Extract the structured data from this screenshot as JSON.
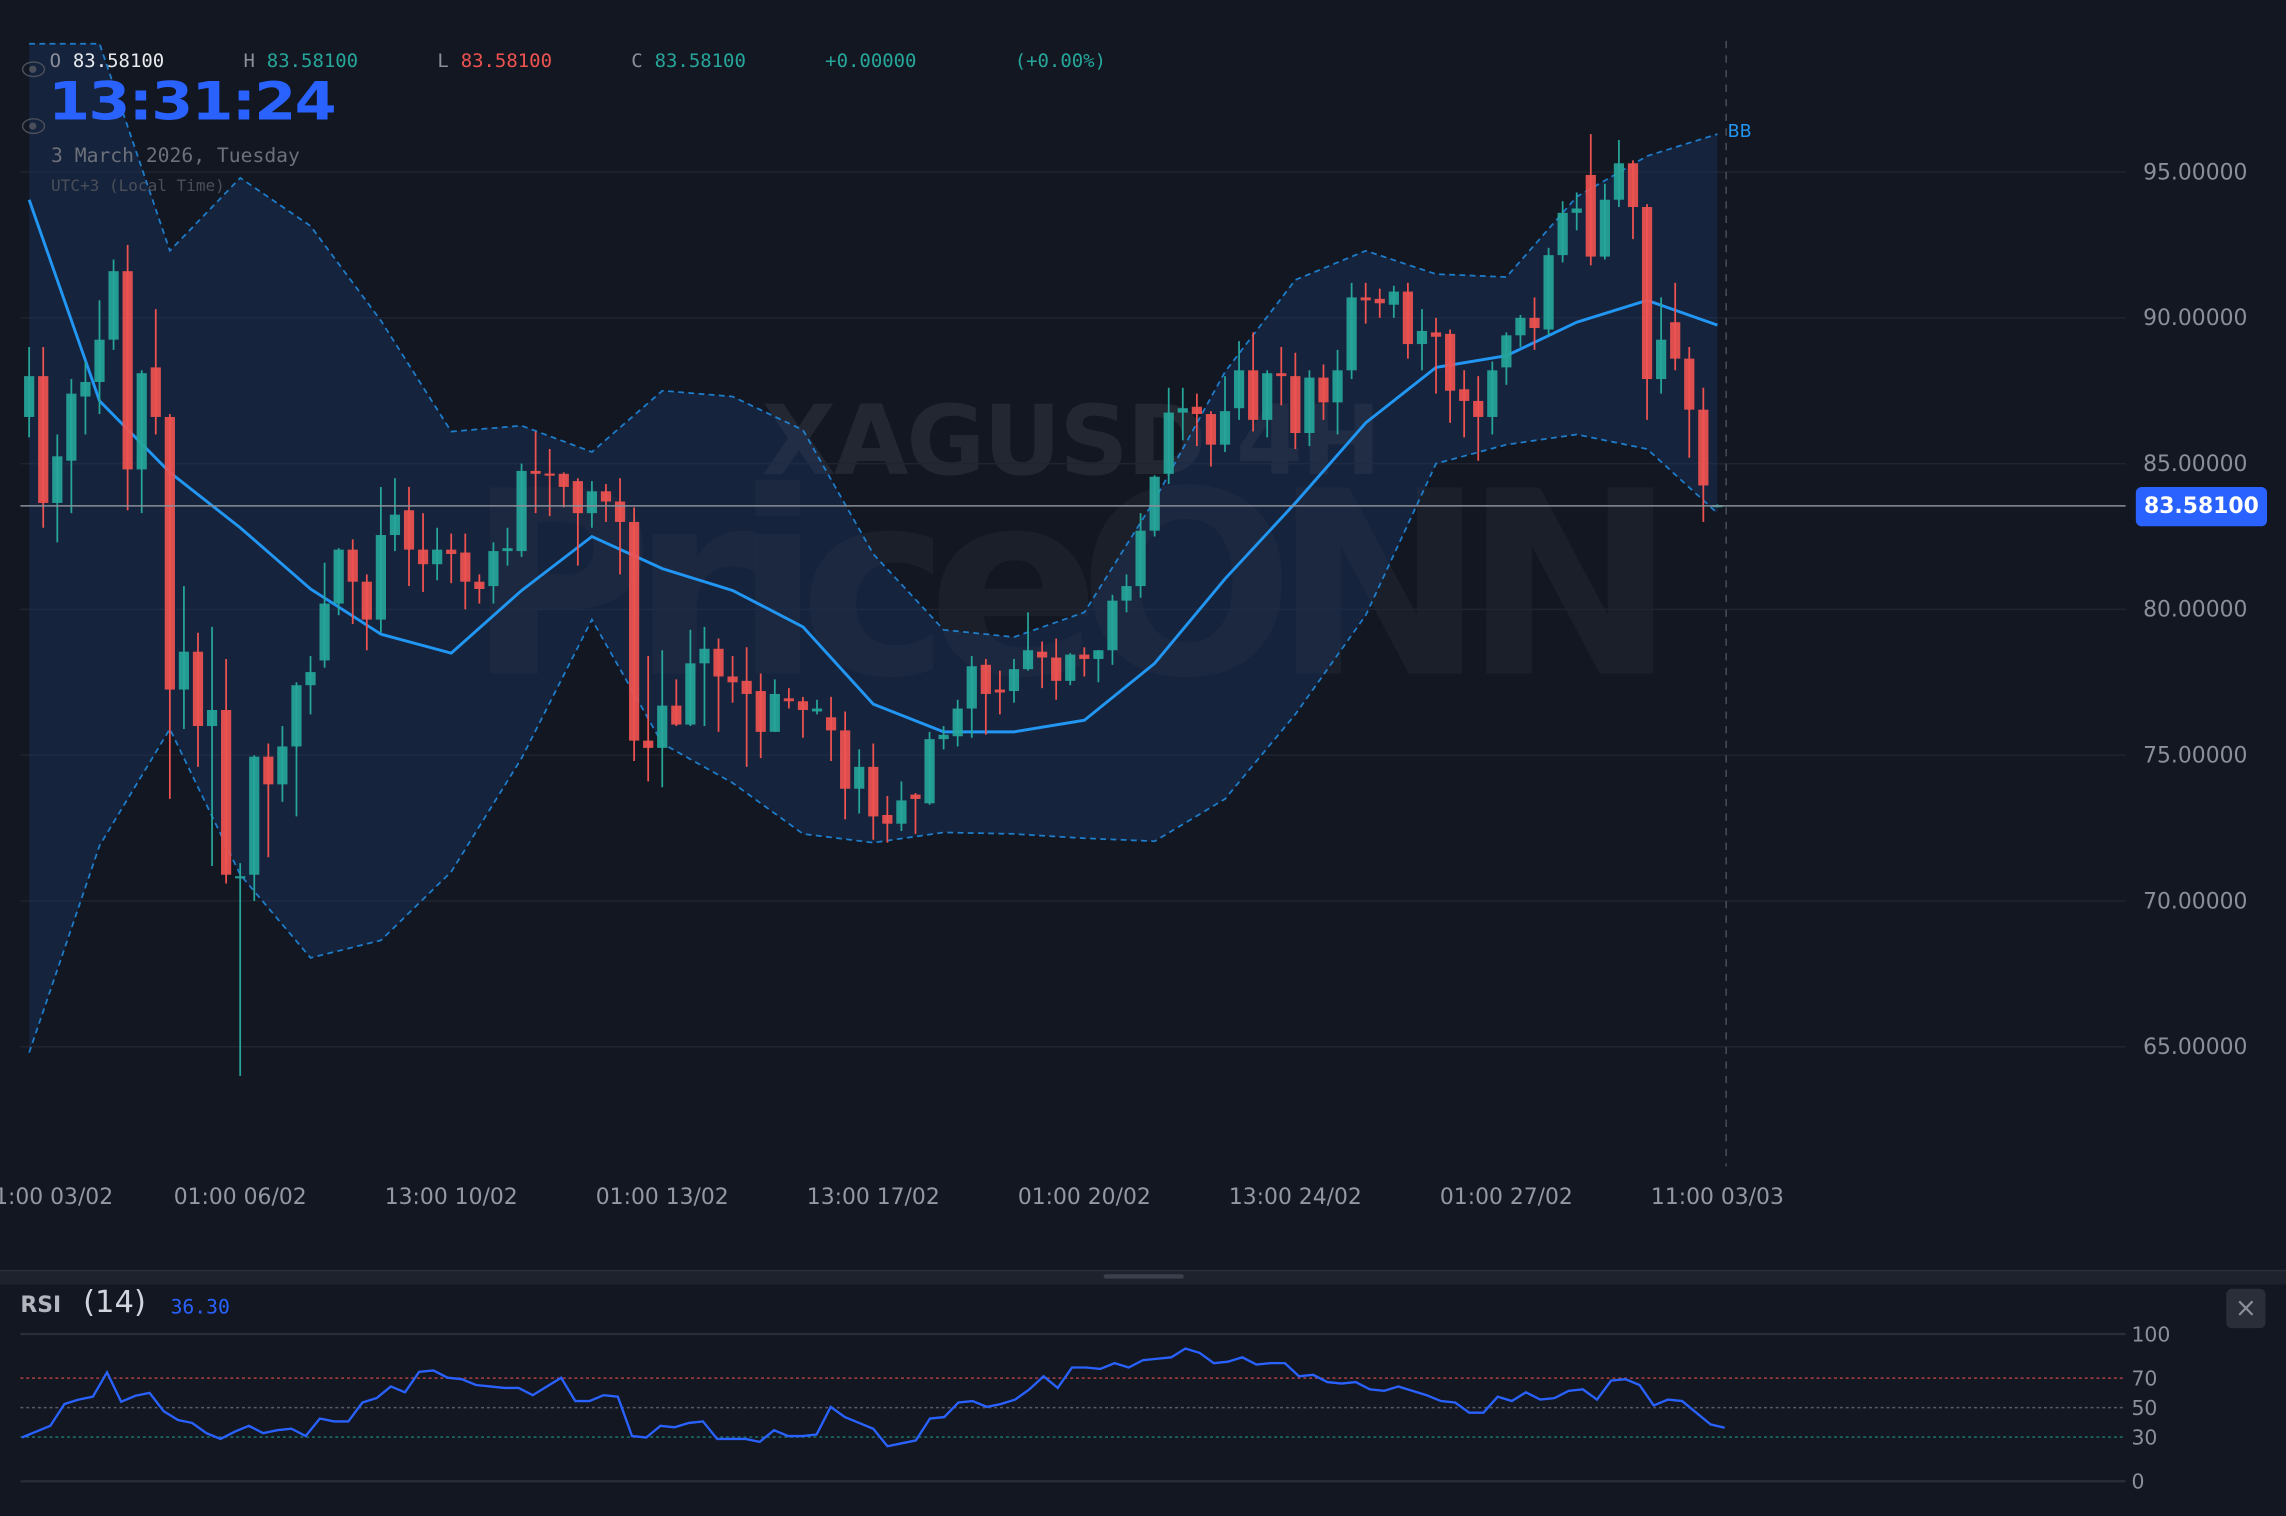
{
  "legend": {
    "open_label": "O",
    "open": "83.58100",
    "high_label": "H",
    "high": "83.58100",
    "low_label": "L",
    "low": "83.58100",
    "close_label": "C",
    "close": "83.58100",
    "change": "+0.00000",
    "change_pct": "(+0.00%)"
  },
  "clock": {
    "time": "13:31:24",
    "date": "3 March 2026, Tuesday",
    "timezone": "UTC+3 (Local Time)"
  },
  "watermark": {
    "symbol": "XAGUSD 4H",
    "brand": "PriceONN"
  },
  "current_price": "83.58100",
  "bb_label": "BB",
  "colors": {
    "background": "#131722",
    "up": "#26a69a",
    "down": "#ef5350",
    "accent": "#2962ff",
    "bb": "#2196f3",
    "rsi": "#2962ff"
  },
  "rsi_panel": {
    "title": "RSI",
    "period_label": "(14)",
    "value": "36.30",
    "close_icon": "close-icon",
    "close_label": "×"
  },
  "chart_data": {
    "type": "candlestick",
    "y_ticks": [
      "95.00000",
      "90.00000",
      "85.00000",
      "80.00000",
      "75.00000",
      "70.00000",
      "65.00000"
    ],
    "y_tick_values": [
      95,
      90,
      85,
      80,
      75,
      70,
      65
    ],
    "ylim": [
      61.5,
      100.5
    ],
    "x_tick_labels": [
      "01:00 03/02",
      "01:00 06/02",
      "13:00 10/02",
      "01:00 13/02",
      "13:00 17/02",
      "01:00 20/02",
      "13:00 24/02",
      "01:00 27/02",
      "11:00 03/03"
    ],
    "grid": true,
    "candles_ohlc": [
      [
        86.6,
        89.0,
        85.9,
        88.0
      ],
      [
        88.0,
        89.0,
        82.8,
        83.65
      ],
      [
        83.65,
        86.0,
        82.3,
        85.25
      ],
      [
        85.1,
        87.9,
        83.3,
        87.4
      ],
      [
        87.3,
        88.5,
        86.0,
        87.8
      ],
      [
        87.8,
        90.6,
        86.7,
        89.25
      ],
      [
        89.25,
        92.0,
        88.9,
        91.6
      ],
      [
        91.6,
        92.5,
        83.4,
        84.8
      ],
      [
        84.8,
        88.2,
        83.3,
        88.1
      ],
      [
        88.3,
        90.3,
        86.0,
        86.6
      ],
      [
        86.6,
        86.7,
        73.5,
        77.25
      ],
      [
        77.25,
        80.8,
        75.9,
        78.55
      ],
      [
        78.55,
        79.2,
        74.6,
        76.0
      ],
      [
        76.0,
        79.4,
        71.2,
        76.55
      ],
      [
        76.55,
        78.3,
        70.6,
        70.9
      ],
      [
        70.8,
        71.3,
        64.0,
        70.85
      ],
      [
        70.9,
        75.0,
        70.0,
        74.95
      ],
      [
        74.95,
        75.4,
        71.5,
        74.0
      ],
      [
        74.0,
        76.0,
        73.4,
        75.3
      ],
      [
        75.3,
        77.5,
        72.9,
        77.4
      ],
      [
        77.4,
        78.4,
        76.4,
        77.85
      ],
      [
        78.25,
        81.6,
        78.0,
        80.2
      ],
      [
        80.2,
        82.1,
        79.8,
        82.05
      ],
      [
        82.05,
        82.4,
        79.5,
        80.95
      ],
      [
        80.95,
        81.2,
        78.6,
        79.65
      ],
      [
        79.65,
        84.2,
        79.2,
        82.55
      ],
      [
        82.55,
        84.5,
        82.0,
        83.25
      ],
      [
        83.4,
        84.2,
        80.8,
        82.05
      ],
      [
        82.05,
        83.3,
        80.6,
        81.55
      ],
      [
        81.55,
        82.8,
        81.0,
        82.05
      ],
      [
        82.05,
        82.6,
        80.9,
        81.9
      ],
      [
        81.95,
        82.6,
        80.0,
        80.95
      ],
      [
        80.95,
        81.2,
        80.2,
        80.7
      ],
      [
        80.8,
        82.3,
        80.2,
        82.0
      ],
      [
        82.0,
        82.8,
        81.5,
        82.1
      ],
      [
        82.0,
        85.0,
        81.8,
        84.75
      ],
      [
        84.75,
        86.1,
        83.3,
        84.65
      ],
      [
        84.66,
        85.5,
        83.2,
        84.62
      ],
      [
        84.65,
        84.7,
        83.5,
        84.2
      ],
      [
        84.4,
        84.5,
        81.5,
        83.3
      ],
      [
        83.3,
        84.4,
        82.8,
        84.05
      ],
      [
        84.05,
        84.3,
        83.0,
        83.7
      ],
      [
        83.7,
        84.5,
        81.2,
        83.0
      ],
      [
        83.0,
        83.5,
        74.8,
        75.5
      ],
      [
        75.5,
        78.4,
        74.1,
        75.25
      ],
      [
        75.25,
        78.6,
        73.9,
        76.7
      ],
      [
        76.7,
        77.6,
        76.0,
        76.05
      ],
      [
        76.05,
        79.3,
        76.0,
        78.15
      ],
      [
        78.15,
        79.4,
        76.0,
        78.65
      ],
      [
        78.65,
        79.0,
        75.8,
        77.7
      ],
      [
        77.7,
        78.4,
        76.8,
        77.5
      ],
      [
        77.55,
        78.7,
        74.6,
        77.1
      ],
      [
        77.2,
        77.8,
        74.9,
        75.8
      ],
      [
        75.8,
        77.6,
        75.8,
        77.1
      ],
      [
        76.95,
        77.3,
        76.6,
        76.85
      ],
      [
        76.85,
        77.0,
        75.6,
        76.55
      ],
      [
        76.5,
        76.9,
        76.4,
        76.6
      ],
      [
        76.3,
        77.0,
        74.8,
        75.85
      ],
      [
        75.85,
        76.5,
        72.8,
        73.85
      ],
      [
        73.85,
        75.2,
        73.0,
        74.6
      ],
      [
        74.6,
        75.4,
        72.1,
        72.9
      ],
      [
        72.95,
        73.6,
        72.0,
        72.65
      ],
      [
        72.65,
        74.1,
        72.4,
        73.45
      ],
      [
        73.65,
        73.7,
        72.3,
        73.5
      ],
      [
        73.35,
        75.8,
        73.3,
        75.55
      ],
      [
        75.55,
        76.0,
        75.2,
        75.7
      ],
      [
        75.65,
        76.9,
        75.3,
        76.6
      ],
      [
        76.6,
        78.4,
        75.6,
        78.05
      ],
      [
        78.1,
        78.3,
        75.7,
        77.1
      ],
      [
        77.25,
        77.9,
        76.4,
        77.15
      ],
      [
        77.2,
        78.3,
        76.8,
        77.95
      ],
      [
        77.95,
        79.9,
        77.9,
        78.6
      ],
      [
        78.55,
        78.9,
        77.3,
        78.35
      ],
      [
        78.35,
        79.0,
        76.9,
        77.55
      ],
      [
        77.55,
        78.5,
        77.4,
        78.45
      ],
      [
        78.45,
        78.7,
        77.7,
        78.3
      ],
      [
        78.3,
        78.6,
        77.5,
        78.6
      ],
      [
        78.6,
        80.5,
        78.1,
        80.3
      ],
      [
        80.3,
        81.2,
        79.9,
        80.8
      ],
      [
        80.8,
        83.3,
        80.4,
        82.7
      ],
      [
        82.7,
        84.6,
        82.5,
        84.55
      ],
      [
        84.65,
        87.6,
        84.3,
        86.75
      ],
      [
        86.75,
        87.6,
        85.8,
        86.9
      ],
      [
        86.95,
        87.4,
        85.6,
        86.7
      ],
      [
        86.7,
        86.8,
        84.9,
        85.65
      ],
      [
        85.65,
        88.0,
        85.4,
        86.8
      ],
      [
        86.9,
        89.2,
        86.5,
        88.2
      ],
      [
        88.2,
        89.5,
        86.1,
        86.5
      ],
      [
        86.5,
        88.2,
        85.9,
        88.1
      ],
      [
        88.1,
        89.0,
        87.0,
        88.0
      ],
      [
        88.0,
        88.8,
        85.5,
        86.05
      ],
      [
        86.05,
        88.2,
        85.6,
        87.95
      ],
      [
        87.95,
        88.4,
        86.5,
        87.1
      ],
      [
        87.1,
        88.9,
        86.0,
        88.2
      ],
      [
        88.2,
        91.2,
        87.9,
        90.7
      ],
      [
        90.7,
        91.2,
        89.8,
        90.6
      ],
      [
        90.65,
        91.0,
        90.0,
        90.5
      ],
      [
        90.45,
        91.1,
        90.0,
        90.9
      ],
      [
        90.9,
        91.2,
        88.6,
        89.1
      ],
      [
        89.1,
        90.3,
        88.2,
        89.55
      ],
      [
        89.5,
        90.0,
        87.4,
        89.35
      ],
      [
        89.45,
        89.6,
        86.4,
        87.5
      ],
      [
        87.55,
        88.2,
        85.9,
        87.15
      ],
      [
        87.15,
        88.0,
        85.1,
        86.6
      ],
      [
        86.6,
        88.5,
        86.0,
        88.2
      ],
      [
        88.3,
        89.5,
        87.7,
        89.4
      ],
      [
        89.4,
        90.1,
        89.0,
        90.0
      ],
      [
        90.0,
        90.7,
        88.9,
        89.65
      ],
      [
        89.6,
        92.4,
        89.4,
        92.15
      ],
      [
        92.15,
        94.0,
        91.9,
        93.6
      ],
      [
        93.6,
        94.3,
        93.0,
        93.75
      ],
      [
        94.9,
        96.3,
        91.8,
        92.1
      ],
      [
        92.1,
        94.6,
        92.0,
        94.05
      ],
      [
        94.05,
        96.1,
        93.8,
        95.3
      ],
      [
        95.3,
        95.4,
        92.7,
        93.8
      ],
      [
        93.8,
        93.9,
        86.5,
        87.9
      ],
      [
        87.9,
        90.7,
        87.4,
        89.25
      ],
      [
        89.85,
        91.2,
        88.2,
        88.6
      ],
      [
        88.6,
        89.0,
        85.2,
        86.85
      ],
      [
        86.85,
        87.6,
        83.0,
        84.25
      ],
      [
        83.56,
        83.6,
        83.5,
        83.581
      ]
    ],
    "bollinger": {
      "label": "BB",
      "upper": [
        99.4,
        99.4,
        92.3,
        94.8,
        93.15,
        89.9,
        86.1,
        86.3,
        85.4,
        87.5,
        87.3,
        86.15,
        81.9,
        79.3,
        79.05,
        79.9,
        83.75,
        88.15,
        91.3,
        92.3,
        91.5,
        91.4,
        94.15,
        95.55,
        96.3
      ],
      "middle": [
        94.05,
        87.15,
        84.7,
        82.8,
        80.7,
        79.15,
        78.5,
        80.65,
        82.5,
        81.4,
        80.65,
        79.4,
        76.75,
        75.8,
        75.8,
        76.2,
        78.15,
        81.05,
        83.65,
        86.4,
        88.3,
        88.7,
        89.85,
        90.6,
        89.75
      ],
      "lower": [
        64.8,
        71.9,
        75.9,
        70.9,
        68.05,
        68.65,
        71.0,
        74.9,
        79.65,
        75.4,
        74.05,
        72.3,
        72.0,
        72.35,
        72.3,
        72.15,
        72.05,
        73.5,
        76.4,
        79.8,
        85.0,
        85.65,
        86.0,
        85.5,
        83.3
      ]
    },
    "rsi": {
      "period": 14,
      "current": 36.3,
      "levels": [
        70,
        50,
        30
      ],
      "y_ticks": [
        "100",
        "70",
        "50",
        "30",
        "0"
      ],
      "ylim": [
        0,
        100
      ],
      "values": [
        29.7,
        33.7,
        37.6,
        52.5,
        55.4,
        57.4,
        74,
        54,
        58,
        60,
        47.5,
        41.6,
        39.6,
        32.7,
        28.7,
        33.7,
        37.6,
        32.7,
        34.7,
        35.6,
        30.7,
        42.6,
        40.6,
        40.6,
        53.5,
        56.4,
        64.4,
        60.4,
        74.3,
        75.2,
        70.3,
        69.3,
        65.3,
        64.4,
        63.4,
        63.4,
        58.4,
        64.4,
        70.3,
        54.5,
        54.5,
        58.4,
        57.4,
        30.7,
        29.7,
        37.6,
        36.6,
        39.6,
        40.6,
        28.7,
        28.7,
        28.7,
        26.7,
        34.7,
        30.7,
        30.7,
        31.7,
        50.5,
        43.6,
        39.6,
        35.6,
        23.8,
        25.7,
        27.7,
        42.6,
        43.6,
        53.5,
        54.5,
        50.5,
        52.5,
        55.4,
        62.4,
        71.3,
        63.4,
        77.2,
        77.2,
        76.2,
        80.2,
        77.2,
        82.2,
        83.2,
        84.2,
        90.1,
        87.1,
        80.2,
        81.2,
        84.2,
        79.2,
        80.2,
        80.2,
        71.3,
        72.3,
        67.3,
        66.3,
        67.3,
        62.4,
        61.4,
        64.4,
        61.4,
        58.4,
        54.5,
        53.5,
        46.5,
        46.5,
        57.4,
        54.5,
        60.4,
        55.4,
        56.4,
        61.4,
        62.4,
        55.4,
        68.3,
        69.3,
        65.3,
        51.5,
        55.4,
        54.5,
        46.5,
        38.6,
        36.3
      ]
    }
  }
}
